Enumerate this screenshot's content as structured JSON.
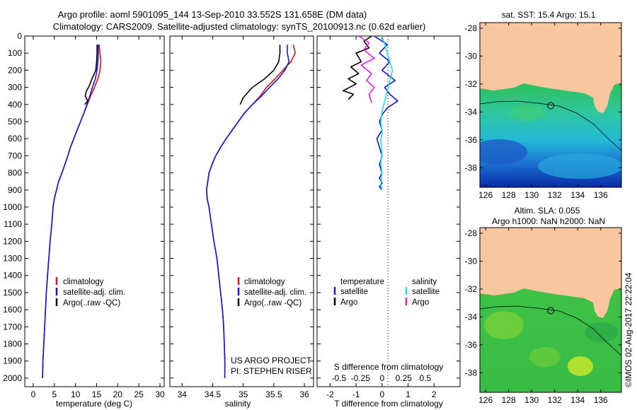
{
  "header": {
    "line1": "Argo profile: aoml 5901095_144 13-Sep-2010 33.552S 131.658E (DM data)",
    "line2": "Climatology: CARS2009. Satellite-adjusted climatology: synTS_20100913.nc (0.62d earlier)"
  },
  "footer": {
    "project": "US ARGO PROJECT",
    "pi": "PI: STEPHEN RISER",
    "stamp": "©IMOS 02-Aug-2017 22:22:04"
  },
  "colors": {
    "climatology": "#e01010",
    "satellite": "#1515d8",
    "argo": "#000000",
    "salinity_satellite": "#20e0e0",
    "salinity_argo": "#e020e0",
    "land": "#f8c79f"
  },
  "chart_data": [
    {
      "id": "temperature",
      "type": "line",
      "xlabel": "temperature (deg C)",
      "ylabel": "",
      "xlim": [
        -2,
        31
      ],
      "ylim": [
        2050,
        0
      ],
      "xticks": [
        "0",
        "5",
        "10",
        "15",
        "20",
        "25",
        "30"
      ],
      "yticks": [
        "0",
        "100",
        "200",
        "300",
        "400",
        "500",
        "600",
        "700",
        "800",
        "900",
        "1000",
        "1100",
        "1200",
        "1300",
        "1400",
        "1500",
        "1600",
        "1700",
        "1800",
        "1900",
        "2000"
      ],
      "legend": [
        "climatology",
        "satellite-adj. clim.",
        "Argo(..raw -QC)"
      ],
      "series": [
        {
          "name": "climatology",
          "color": "#e01010",
          "x": [
            15.6,
            15.8,
            16.0,
            15.8,
            15.3,
            14.5,
            13.6,
            12.8,
            12.0,
            11.2,
            10.4,
            9.6,
            8.8,
            8.2,
            7.5,
            6.8,
            6.0,
            5.5,
            5.0,
            4.7,
            4.4,
            4.0,
            3.7,
            3.4,
            3.1,
            2.9,
            2.7,
            2.5,
            2.3,
            2.2
          ],
          "y": [
            50,
            100,
            150,
            200,
            250,
            300,
            350,
            400,
            450,
            500,
            550,
            600,
            650,
            700,
            750,
            800,
            850,
            900,
            950,
            1000,
            1100,
            1200,
            1300,
            1400,
            1500,
            1600,
            1700,
            1800,
            1900,
            2000
          ]
        },
        {
          "name": "satellite-adj. clim.",
          "color": "#1515d8",
          "x": [
            15.4,
            15.4,
            15.3,
            15.1,
            14.7,
            14.0,
            13.4,
            12.7,
            12.0,
            11.2,
            10.4,
            9.6,
            8.8,
            8.2,
            7.5,
            6.8,
            6.0,
            5.5,
            5.0,
            4.7,
            4.4,
            4.0,
            3.7,
            3.4,
            3.1,
            2.9,
            2.7,
            2.5,
            2.3,
            2.2
          ],
          "y": [
            50,
            100,
            150,
            200,
            250,
            300,
            350,
            400,
            450,
            500,
            550,
            600,
            650,
            700,
            750,
            800,
            850,
            900,
            950,
            1000,
            1100,
            1200,
            1300,
            1400,
            1500,
            1600,
            1700,
            1800,
            1900,
            2000
          ]
        },
        {
          "name": "Argo(..raw -QC)",
          "color": "#000000",
          "x": [
            15.1,
            15.1,
            15.0,
            14.8,
            13.9,
            13.3,
            12.6,
            12.3,
            12.9,
            12.2
          ],
          "y": [
            50,
            100,
            150,
            200,
            250,
            290,
            320,
            350,
            380,
            400
          ]
        }
      ]
    },
    {
      "id": "salinity",
      "type": "line",
      "xlabel": "salinity",
      "ylabel": "",
      "xlim": [
        33.8,
        36.15
      ],
      "ylim": [
        2050,
        0
      ],
      "xticks": [
        "34",
        "34.5",
        "35",
        "35.5",
        "36"
      ],
      "legend": [
        "climatology",
        "satellite-adj. clim.",
        "Argo(..raw -QC)"
      ],
      "series": [
        {
          "name": "climatology",
          "color": "#e01010",
          "x": [
            35.82,
            35.85,
            35.78,
            35.65,
            35.52,
            35.38,
            35.28,
            35.15,
            35.02,
            34.92,
            34.82,
            34.72,
            34.63,
            34.55,
            34.49,
            34.44,
            34.42,
            34.4,
            34.41,
            34.44,
            34.48,
            34.52,
            34.57,
            34.6,
            34.63,
            34.66,
            34.68,
            34.69,
            34.7,
            34.7
          ],
          "y": [
            50,
            100,
            150,
            200,
            250,
            300,
            350,
            400,
            450,
            500,
            550,
            600,
            650,
            700,
            750,
            800,
            850,
            900,
            950,
            1000,
            1100,
            1200,
            1300,
            1400,
            1500,
            1600,
            1700,
            1800,
            1900,
            2000
          ]
        },
        {
          "name": "satellite-adj. clim.",
          "color": "#1515d8",
          "x": [
            35.72,
            35.72,
            35.75,
            35.68,
            35.57,
            35.43,
            35.3,
            35.15,
            35.02,
            34.92,
            34.82,
            34.72,
            34.63,
            34.55,
            34.49,
            34.44,
            34.42,
            34.4,
            34.41,
            34.44,
            34.48,
            34.52,
            34.57,
            34.6,
            34.63,
            34.66,
            34.68,
            34.69,
            34.7,
            34.7
          ],
          "y": [
            50,
            100,
            150,
            200,
            250,
            300,
            350,
            400,
            450,
            500,
            550,
            600,
            650,
            700,
            750,
            800,
            850,
            900,
            950,
            1000,
            1100,
            1200,
            1300,
            1400,
            1500,
            1600,
            1700,
            1800,
            1900,
            2000
          ]
        },
        {
          "name": "Argo(..raw -QC)",
          "color": "#000000",
          "x": [
            35.6,
            35.6,
            35.58,
            35.5,
            35.35,
            35.15,
            35.0,
            34.95
          ],
          "y": [
            50,
            100,
            150,
            200,
            250,
            300,
            360,
            400
          ]
        }
      ]
    },
    {
      "id": "difference",
      "type": "line",
      "xlabel": "T difference from climatology",
      "x2label": "S difference from climatology",
      "ylabel": "",
      "xlim": [
        -2.5,
        3.0
      ],
      "ylim": [
        2050,
        0
      ],
      "xticks": [
        "-2",
        "-1",
        "0",
        "1",
        "2"
      ],
      "x2ticks": [
        "-0.5",
        "-0.25",
        "0",
        "0.25",
        "0.5"
      ],
      "legend_temperature": [
        "temperature",
        "satellite",
        "Argo"
      ],
      "legend_salinity": [
        "salinity",
        "satellite",
        "Argo"
      ],
      "series": [
        {
          "name": "satellite",
          "color": "#1515d8",
          "x": [
            -0.3,
            -0.1,
            0.2,
            -0.1,
            0.3,
            0.0,
            0.5,
            0.1,
            0.3,
            0.6,
            0.2,
            0.0,
            -0.1,
            0.0,
            -0.2,
            -0.1,
            0.0,
            -0.1,
            0.0,
            -0.1,
            0.0,
            -0.1,
            0.0
          ],
          "y": [
            0,
            20,
            50,
            100,
            150,
            200,
            260,
            300,
            340,
            380,
            420,
            460,
            500,
            550,
            600,
            650,
            700,
            750,
            800,
            830,
            860,
            880,
            900
          ]
        },
        {
          "name": "Argo",
          "color": "#000000",
          "x": [
            -0.4,
            -0.7,
            -0.5,
            -1.0,
            -0.8,
            -1.2,
            -0.9,
            -1.3,
            -1.0,
            -1.5,
            -1.1,
            -1.3
          ],
          "y": [
            0,
            30,
            70,
            100,
            150,
            180,
            220,
            250,
            280,
            320,
            340,
            370
          ]
        },
        {
          "name": "satellite",
          "color": "#20e0e0",
          "x": [
            0.0,
            0.1,
            0.2,
            0.3,
            0.4,
            0.3,
            0.2,
            0.1,
            0.0,
            -0.05,
            0.0,
            -0.05,
            0.0,
            -0.05,
            0.0,
            -0.05,
            0.0
          ],
          "y": [
            0,
            50,
            100,
            150,
            200,
            260,
            320,
            380,
            440,
            500,
            560,
            620,
            680,
            740,
            800,
            860,
            900
          ]
        },
        {
          "name": "Argo",
          "color": "#e020e0",
          "x": [
            -0.9,
            -0.5,
            -0.7,
            -0.3,
            -0.8,
            -0.4,
            -0.6,
            -0.3,
            -0.5,
            -0.4
          ],
          "y": [
            0,
            40,
            80,
            130,
            170,
            220,
            260,
            300,
            340,
            390
          ]
        }
      ]
    },
    {
      "id": "map-sst",
      "type": "heatmap",
      "title": "sat. SST: 15.4  Argo: 15.1",
      "xlim": [
        125.5,
        137.8
      ],
      "ylim": [
        -39.4,
        -27.6
      ],
      "xticks": [
        "126",
        "128",
        "130",
        "132",
        "134",
        "136"
      ],
      "yticks": [
        "-28",
        "-30",
        "-32",
        "-34",
        "-36",
        "-38"
      ],
      "marker": {
        "lon": 131.658,
        "lat": -33.552
      }
    },
    {
      "id": "map-sla",
      "type": "heatmap",
      "title": "Altim. SLA: 0.055",
      "subtitle": "Argo h1000: NaN h2000: NaN",
      "xlim": [
        125.5,
        137.8
      ],
      "ylim": [
        -39.4,
        -27.6
      ],
      "xticks": [
        "126",
        "128",
        "130",
        "132",
        "134",
        "136"
      ],
      "yticks": [
        "-28",
        "-30",
        "-32",
        "-34",
        "-36",
        "-38"
      ],
      "marker": {
        "lon": 131.658,
        "lat": -33.552
      }
    }
  ]
}
